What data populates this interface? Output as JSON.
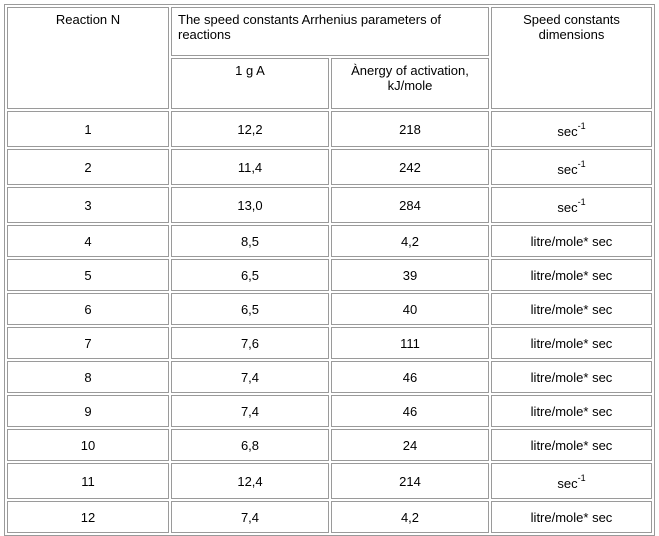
{
  "headers": {
    "reaction": "Reaction N",
    "arrhenius_group": "The speed constants Arrhenius parameters of reactions",
    "lg_a": "1 g A",
    "activation_energy": "Ànergy of activation, kJ/mole",
    "dimensions": "Speed constants dimensions"
  },
  "rows": [
    {
      "n": "1",
      "lga": "12,2",
      "energy": "218",
      "unit": "sec",
      "unit_exp": "-1"
    },
    {
      "n": "2",
      "lga": "11,4",
      "energy": "242",
      "unit": "sec",
      "unit_exp": "-1"
    },
    {
      "n": "3",
      "lga": "13,0",
      "energy": "284",
      "unit": "sec",
      "unit_exp": "-1"
    },
    {
      "n": "4",
      "lga": "8,5",
      "energy": "4,2",
      "unit": "litre/mole* sec",
      "unit_exp": ""
    },
    {
      "n": "5",
      "lga": "6,5",
      "energy": "39",
      "unit": "litre/mole* sec",
      "unit_exp": ""
    },
    {
      "n": "6",
      "lga": "6,5",
      "energy": "40",
      "unit": "litre/mole* sec",
      "unit_exp": ""
    },
    {
      "n": "7",
      "lga": "7,6",
      "energy": "111",
      "unit": "litre/mole* sec",
      "unit_exp": ""
    },
    {
      "n": "8",
      "lga": "7,4",
      "energy": "46",
      "unit": "litre/mole* sec",
      "unit_exp": ""
    },
    {
      "n": "9",
      "lga": "7,4",
      "energy": "46",
      "unit": "litre/mole* sec",
      "unit_exp": ""
    },
    {
      "n": "10",
      "lga": "6,8",
      "energy": "24",
      "unit": "litre/mole* sec",
      "unit_exp": ""
    },
    {
      "n": "11",
      "lga": "12,4",
      "energy": "214",
      "unit": "sec",
      "unit_exp": "-1"
    },
    {
      "n": "12",
      "lga": "7,4",
      "energy": "4,2",
      "unit": "litre/mole* sec",
      "unit_exp": ""
    }
  ]
}
